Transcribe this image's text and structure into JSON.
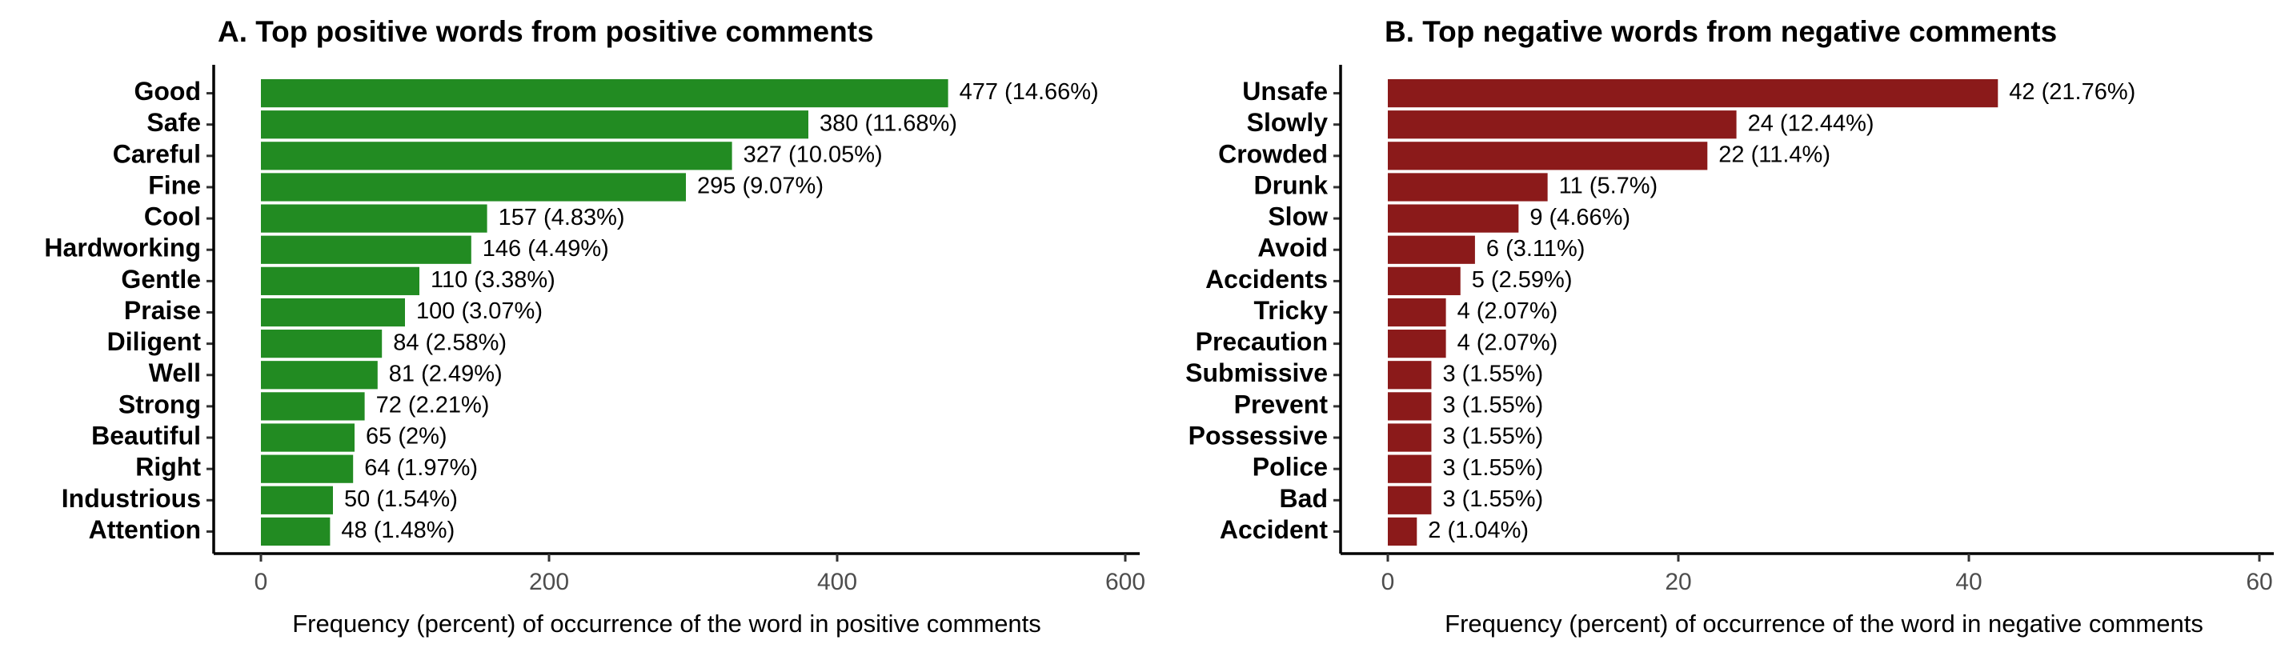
{
  "chart_data": [
    {
      "type": "bar",
      "orientation": "horizontal",
      "title": "A. Top positive words from positive comments",
      "xlabel": "Frequency (percent) of occurrence of the word in positive comments",
      "ylabel": "",
      "xlim": [
        0,
        600
      ],
      "x_ticks": [
        "0",
        "200",
        "400",
        "600"
      ],
      "bar_color": "#228B22",
      "categories": [
        "Good",
        "Safe",
        "Careful",
        "Fine",
        "Cool",
        "Hardworking",
        "Gentle",
        "Praise",
        "Diligent",
        "Well",
        "Strong",
        "Beautiful",
        "Right",
        "Industrious",
        "Attention"
      ],
      "values": [
        477,
        380,
        327,
        295,
        157,
        146,
        110,
        100,
        84,
        81,
        72,
        65,
        64,
        50,
        48
      ],
      "labels": [
        "477 (14.66%)",
        "380 (11.68%)",
        "327 (10.05%)",
        "295 (9.07%)",
        "157 (4.83%)",
        "146 (4.49%)",
        "110 (3.38%)",
        "100 (3.07%)",
        "84 (2.58%)",
        "81 (2.49%)",
        "72 (2.21%)",
        "65 (2%)",
        "64 (1.97%)",
        "50 (1.54%)",
        "48 (1.48%)"
      ],
      "grid": false,
      "legend": "none"
    },
    {
      "type": "bar",
      "orientation": "horizontal",
      "title": "B. Top negative words from negative comments",
      "xlabel": "Frequency (percent) of occurrence of the word in negative comments",
      "ylabel": "",
      "xlim": [
        0,
        60
      ],
      "x_ticks": [
        "0",
        "20",
        "40",
        "60"
      ],
      "bar_color": "#8B1A1A",
      "categories": [
        "Unsafe",
        "Slowly",
        "Crowded",
        "Drunk",
        "Slow",
        "Avoid",
        "Accidents",
        "Tricky",
        "Precaution",
        "Submissive",
        "Prevent",
        "Possessive",
        "Police",
        "Bad",
        "Accident"
      ],
      "values": [
        42,
        24,
        22,
        11,
        9,
        6,
        5,
        4,
        4,
        3,
        3,
        3,
        3,
        3,
        2
      ],
      "labels": [
        "42 (21.76%)",
        "24 (12.44%)",
        "22 (11.4%)",
        "11 (5.7%)",
        "9 (4.66%)",
        "6 (3.11%)",
        "5 (2.59%)",
        "4 (2.07%)",
        "4 (2.07%)",
        "3 (1.55%)",
        "3 (1.55%)",
        "3 (1.55%)",
        "3 (1.55%)",
        "3 (1.55%)",
        "2 (1.04%)"
      ],
      "grid": false,
      "legend": "none"
    }
  ]
}
